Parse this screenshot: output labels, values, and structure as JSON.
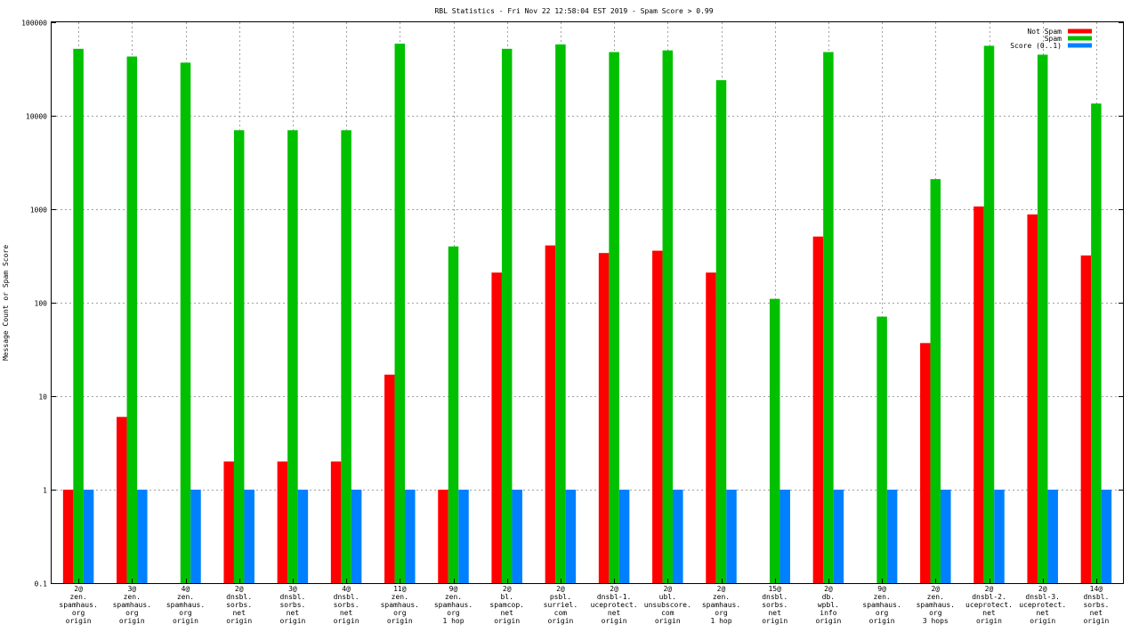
{
  "chart_data": {
    "type": "bar",
    "title": "RBL Statistics - Fri Nov 22 12:58:04 EST 2019 - Spam Score > 0.99",
    "ylabel": "Message Count or Spam Score",
    "xlabel": "",
    "yscale": "log",
    "ylim": [
      0.1,
      100000
    ],
    "yticks": [
      "0.1",
      "1",
      "10",
      "100",
      "1000",
      "10000",
      "100000"
    ],
    "grid": true,
    "legend_position": "top-right",
    "categories": [
      [
        "2@",
        "zen.",
        "spamhaus.",
        "org",
        "origin"
      ],
      [
        "3@",
        "zen.",
        "spamhaus.",
        "org",
        "origin"
      ],
      [
        "4@",
        "zen.",
        "spamhaus.",
        "org",
        "origin"
      ],
      [
        "2@",
        "dnsbl.",
        "sorbs.",
        "net",
        "origin"
      ],
      [
        "3@",
        "dnsbl.",
        "sorbs.",
        "net",
        "origin"
      ],
      [
        "4@",
        "dnsbl.",
        "sorbs.",
        "net",
        "origin"
      ],
      [
        "11@",
        "zen.",
        "spamhaus.",
        "org",
        "origin"
      ],
      [
        "9@",
        "zen.",
        "spamhaus.",
        "org",
        "1 hop"
      ],
      [
        "2@",
        "bl.",
        "spamcop.",
        "net",
        "origin"
      ],
      [
        "2@",
        "psbl.",
        "surriel.",
        "com",
        "origin"
      ],
      [
        "2@",
        "dnsbl-1.",
        "uceprotect.",
        "net",
        "origin"
      ],
      [
        "2@",
        "ubl.",
        "unsubscore.",
        "com",
        "origin"
      ],
      [
        "2@",
        "zen.",
        "spamhaus.",
        "org",
        "1 hop"
      ],
      [
        "15@",
        "dnsbl.",
        "sorbs.",
        "net",
        "origin"
      ],
      [
        "2@",
        "db.",
        "wpbl.",
        "info",
        "origin"
      ],
      [
        "9@",
        "zen.",
        "spamhaus.",
        "org",
        "origin"
      ],
      [
        "2@",
        "zen.",
        "spamhaus.",
        "org",
        "3 hops"
      ],
      [
        "2@",
        "dnsbl-2.",
        "uceprotect.",
        "net",
        "origin"
      ],
      [
        "2@",
        "dnsbl-3.",
        "uceprotect.",
        "net",
        "origin"
      ],
      [
        "14@",
        "dnsbl.",
        "sorbs.",
        "net",
        "origin"
      ]
    ],
    "series": [
      {
        "name": "Not Spam",
        "color": "#ff0000",
        "values": [
          1,
          6,
          null,
          2,
          2,
          2,
          17,
          1,
          210,
          410,
          340,
          360,
          210,
          null,
          510,
          null,
          37,
          1070,
          880,
          320
        ]
      },
      {
        "name": "Spam",
        "color": "#00c000",
        "values": [
          52000,
          43000,
          37000,
          7000,
          7000,
          7000,
          59000,
          400,
          52000,
          58000,
          48000,
          50000,
          24000,
          110,
          48000,
          71,
          2100,
          56000,
          45000,
          13500
        ]
      },
      {
        "name": "Score (0..1)",
        "color": "#0080ff",
        "values": [
          1,
          1,
          1,
          1,
          1,
          1,
          1,
          1,
          1,
          1,
          1,
          1,
          1,
          1,
          1,
          1,
          1,
          1,
          1,
          1
        ]
      }
    ]
  }
}
